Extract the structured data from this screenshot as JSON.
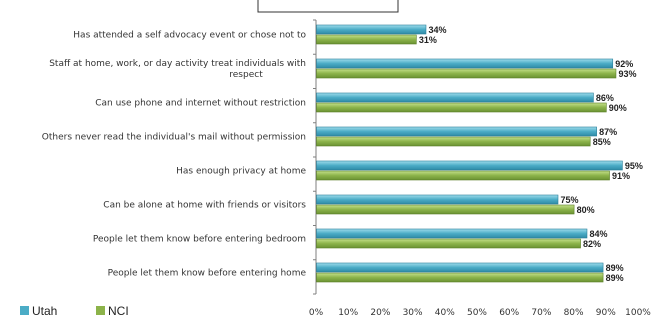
{
  "chart_data": {
    "type": "bar",
    "orientation": "horizontal",
    "categories": [
      "Has attended a self advocacy event or chose not to",
      "Staff at home, work, or day activity treat individuals with respect",
      "Can use phone and internet without restriction",
      "Others never read the individual's mail without permission",
      "Has enough privacy at home",
      "Can be alone at home with friends or visitors",
      "People let them know before entering bedroom",
      "People let them know before entering home"
    ],
    "category_lines": [
      [
        "Has attended a self advocacy event or chose not to"
      ],
      [
        "Staff at home, work, or day activity treat individuals with",
        "respect"
      ],
      [
        "Can use phone and internet without restriction"
      ],
      [
        "Others never read the individual's mail without permission"
      ],
      [
        "Has enough privacy at home"
      ],
      [
        "Can be alone at home with friends or visitors"
      ],
      [
        "People let them know before entering bedroom"
      ],
      [
        "People let them know before entering home"
      ]
    ],
    "series": [
      {
        "name": "Utah",
        "values": [
          34,
          92,
          86,
          87,
          95,
          75,
          84,
          89
        ],
        "color": "#4bacc6"
      },
      {
        "name": "NCI",
        "values": [
          31,
          93,
          90,
          85,
          91,
          80,
          82,
          89
        ],
        "color": "#8cb34a"
      }
    ],
    "value_labels": {
      "Utah": [
        "34%",
        "92%",
        "86%",
        "87%",
        "95%",
        "75%",
        "84%",
        "89%"
      ],
      "NCI": [
        "31%",
        "93%",
        "90%",
        "85%",
        "91%",
        "80%",
        "82%",
        "89%"
      ]
    },
    "xlim": [
      0,
      100
    ],
    "xticks": [
      "0%",
      "10%",
      "20%",
      "30%",
      "40%",
      "50%",
      "60%",
      "70%",
      "80%",
      "90%",
      "100%"
    ],
    "grid": false,
    "legend_position": "bottom-left"
  }
}
